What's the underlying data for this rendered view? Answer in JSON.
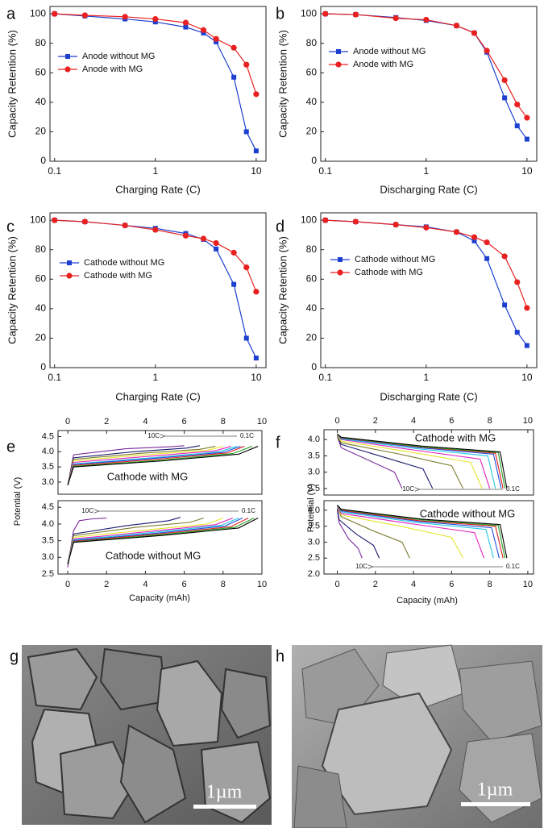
{
  "chart_data": [
    {
      "type": "line",
      "label": "a",
      "xscale": "log",
      "xlim": [
        0.09,
        12.5
      ],
      "xticks": [
        0.1,
        1,
        10
      ],
      "ylim": [
        0,
        105
      ],
      "yticks": [
        0,
        20,
        40,
        60,
        80,
        100
      ],
      "xlabel": "Charging Rate (C)",
      "ylabel": "Capacity Retention (%)",
      "legend": "center-left",
      "x": [
        0.1,
        0.2,
        0.5,
        1,
        2,
        3,
        4,
        6,
        8,
        10
      ],
      "series": [
        {
          "name": "Anode without MG",
          "color": "#1c3fd0",
          "marker": "square",
          "values": [
            100,
            98.5,
            96.5,
            94.5,
            91,
            87,
            81,
            57,
            20,
            7
          ]
        },
        {
          "name": "Anode with MG",
          "color": "#e82020",
          "marker": "circle",
          "values": [
            100,
            99,
            98,
            96.5,
            94,
            89,
            83,
            77,
            65.5,
            45.5
          ]
        }
      ]
    },
    {
      "type": "line",
      "label": "b",
      "xscale": "log",
      "xlim": [
        0.09,
        12.5
      ],
      "xticks": [
        0.1,
        1,
        10
      ],
      "ylim": [
        0,
        105
      ],
      "yticks": [
        0,
        20,
        40,
        60,
        80,
        100
      ],
      "xlabel": "Discharging Rate (C)",
      "ylabel": "Capacity Retention (%)",
      "legend": "center-left",
      "x": [
        0.1,
        0.2,
        0.5,
        1,
        2,
        3,
        4,
        6,
        8,
        10
      ],
      "series": [
        {
          "name": "Anode without MG",
          "color": "#1c3fd0",
          "marker": "square",
          "values": [
            100,
            99.5,
            97.5,
            95.5,
            92,
            87,
            74,
            43,
            24,
            15
          ]
        },
        {
          "name": "Anode with MG",
          "color": "#e82020",
          "marker": "circle",
          "values": [
            100,
            99.5,
            97,
            96,
            92,
            87,
            75,
            55,
            38.5,
            29.5
          ]
        }
      ]
    },
    {
      "type": "line",
      "label": "c",
      "xscale": "log",
      "xlim": [
        0.09,
        12.5
      ],
      "xticks": [
        0.1,
        1,
        10
      ],
      "ylim": [
        0,
        105
      ],
      "yticks": [
        0,
        20,
        40,
        60,
        80,
        100
      ],
      "xlabel": "Charging Rate (C)",
      "ylabel": "Capacity Retention (%)",
      "legend": "center-left",
      "x": [
        0.1,
        0.2,
        0.5,
        1,
        2,
        3,
        4,
        6,
        8,
        10
      ],
      "series": [
        {
          "name": "Cathode without MG",
          "color": "#1c3fd0",
          "marker": "square",
          "values": [
            100,
            99,
            96.5,
            94.5,
            91,
            87,
            80.5,
            56.5,
            20,
            6.5
          ]
        },
        {
          "name": "Cathode with MG",
          "color": "#e82020",
          "marker": "circle",
          "values": [
            100,
            99,
            96.5,
            93.5,
            89.5,
            87.5,
            84.5,
            78,
            68,
            51.5
          ]
        }
      ]
    },
    {
      "type": "line",
      "label": "d",
      "xscale": "log",
      "xlim": [
        0.09,
        12.5
      ],
      "xticks": [
        0.1,
        1,
        10
      ],
      "ylim": [
        0,
        105
      ],
      "yticks": [
        0,
        20,
        40,
        60,
        80,
        100
      ],
      "xlabel": "Discharging Rate (C)",
      "ylabel": "Capacity Retention (%)",
      "legend": "center-left",
      "x": [
        0.1,
        0.2,
        0.5,
        1,
        2,
        3,
        4,
        6,
        8,
        10
      ],
      "series": [
        {
          "name": "Cathode without MG",
          "color": "#1c3fd0",
          "marker": "square",
          "values": [
            100,
            99,
            97,
            95.5,
            92,
            86,
            74,
            42.5,
            24,
            15
          ]
        },
        {
          "name": "Cathode with MG",
          "color": "#e82020",
          "marker": "circle",
          "values": [
            100,
            99,
            97,
            95,
            92,
            88.5,
            85,
            75.5,
            58,
            40.5
          ]
        }
      ]
    },
    {
      "type": "line",
      "label": "e",
      "xaxis": "top",
      "xlim": [
        -0.5,
        10
      ],
      "xticks": [
        0,
        2,
        4,
        6,
        8,
        10
      ],
      "ylim": [
        2.6,
        4.7
      ],
      "yticks": [
        {
          "value": 3,
          "label": "3.0"
        },
        3.5,
        {
          "value": 4,
          "label": "4.0"
        },
        4.5
      ],
      "ylabel": "Potential (V)",
      "annotations": [
        "Cathode with MG",
        "10C",
        "0.1C"
      ],
      "series": [
        {
          "color": "#7b2a9c",
          "x": [
            0,
            0.3,
            3.0,
            5.4,
            6.0
          ],
          "values": [
            2.9,
            3.9,
            4.1,
            4.17,
            4.2
          ]
        },
        {
          "color": "#1a1a6e",
          "x": [
            0,
            0.3,
            3.4,
            6.1,
            6.8
          ],
          "values": [
            2.9,
            3.8,
            4.0,
            4.12,
            4.2
          ]
        },
        {
          "color": "#7a7a2a",
          "x": [
            0,
            0.3,
            3.8,
            6.8,
            7.6
          ],
          "values": [
            2.9,
            3.75,
            3.95,
            4.08,
            4.18
          ]
        },
        {
          "color": "#e5e52a",
          "x": [
            0,
            0.3,
            4.0,
            7.2,
            8.0
          ],
          "values": [
            2.9,
            3.7,
            3.9,
            4.05,
            4.18
          ]
        },
        {
          "color": "#e020c0",
          "x": [
            0,
            0.3,
            4.2,
            7.6,
            8.4
          ],
          "values": [
            2.9,
            3.65,
            3.85,
            4.03,
            4.18
          ]
        },
        {
          "color": "#20c8e0",
          "x": [
            0,
            0.3,
            4.35,
            7.8,
            8.7
          ],
          "values": [
            2.9,
            3.6,
            3.8,
            4.0,
            4.18
          ]
        },
        {
          "color": "#2050e0",
          "x": [
            0,
            0.3,
            4.45,
            8.0,
            8.9
          ],
          "values": [
            2.9,
            3.58,
            3.78,
            3.98,
            4.18
          ]
        },
        {
          "color": "#e02020",
          "x": [
            0,
            0.3,
            4.55,
            8.2,
            9.1
          ],
          "values": [
            2.9,
            3.55,
            3.75,
            3.96,
            4.18
          ]
        },
        {
          "color": "#20a020",
          "x": [
            0,
            0.3,
            4.75,
            8.5,
            9.5
          ],
          "values": [
            2.9,
            3.52,
            3.72,
            3.94,
            4.18
          ]
        },
        {
          "color": "#000000",
          "x": [
            0,
            0.3,
            4.9,
            8.8,
            9.8
          ],
          "values": [
            2.9,
            3.5,
            3.7,
            3.92,
            4.18
          ]
        }
      ]
    },
    {
      "type": "line",
      "xaxis": "bottom",
      "xlim": [
        -0.5,
        10
      ],
      "xticks": [
        0,
        2,
        4,
        6,
        8,
        10
      ],
      "ylim": [
        2.5,
        4.7
      ],
      "yticks": [
        2.5,
        {
          "value": 3,
          "label": "3.0"
        },
        3.5,
        {
          "value": 4,
          "label": "4.0"
        },
        4.5
      ],
      "xlabel": "Capacity (mAh)",
      "annotations": [
        "Cathode without MG",
        "10C",
        "0.1C"
      ],
      "series": [
        {
          "color": "#7b2a9c",
          "x": [
            0,
            0.3,
            0.6,
            1.2,
            2.0
          ],
          "values": [
            2.7,
            3.8,
            4.1,
            4.15,
            4.18
          ]
        },
        {
          "color": "#1a1a6e",
          "x": [
            0,
            0.3,
            3.0,
            5.2,
            5.8
          ],
          "values": [
            2.8,
            3.7,
            3.95,
            4.1,
            4.2
          ]
        },
        {
          "color": "#7a7a2a",
          "x": [
            0,
            0.3,
            3.5,
            6.3,
            7.0
          ],
          "values": [
            2.8,
            3.65,
            3.9,
            4.05,
            4.18
          ]
        },
        {
          "color": "#e5e52a",
          "x": [
            0,
            0.3,
            4.0,
            7.2,
            8.0
          ],
          "values": [
            2.8,
            3.6,
            3.82,
            4.0,
            4.18
          ]
        },
        {
          "color": "#e020c0",
          "x": [
            0,
            0.3,
            4.25,
            7.6,
            8.5
          ],
          "values": [
            2.8,
            3.55,
            3.78,
            3.98,
            4.18
          ]
        },
        {
          "color": "#20c8e0",
          "x": [
            0,
            0.3,
            4.4,
            7.9,
            8.8
          ],
          "values": [
            2.8,
            3.52,
            3.75,
            3.96,
            4.18
          ]
        },
        {
          "color": "#2050e0",
          "x": [
            0,
            0.3,
            4.5,
            8.1,
            9.0
          ],
          "values": [
            2.8,
            3.5,
            3.72,
            3.94,
            4.18
          ]
        },
        {
          "color": "#e02020",
          "x": [
            0,
            0.3,
            4.65,
            8.4,
            9.3
          ],
          "values": [
            2.8,
            3.48,
            3.7,
            3.92,
            4.18
          ]
        },
        {
          "color": "#20a020",
          "x": [
            0,
            0.3,
            4.8,
            8.6,
            9.6
          ],
          "values": [
            2.8,
            3.46,
            3.68,
            3.9,
            4.18
          ]
        },
        {
          "color": "#000000",
          "x": [
            0,
            0.3,
            4.9,
            8.8,
            9.8
          ],
          "values": [
            2.8,
            3.45,
            3.66,
            3.88,
            4.18
          ]
        }
      ]
    },
    {
      "type": "line",
      "label": "f",
      "xaxis": "top",
      "xlim": [
        -0.7,
        10.3
      ],
      "xticks": [
        0,
        2,
        4,
        6,
        8,
        10
      ],
      "ylim": [
        2.3,
        4.3
      ],
      "yticks": [
        2.5,
        {
          "value": 3,
          "label": "3.0"
        },
        3.5,
        {
          "value": 4,
          "label": "4.0"
        }
      ],
      "ylabel": "Potential (V)",
      "annotations": [
        "Cathode with MG",
        "10C",
        "0.1C"
      ],
      "series": [
        {
          "color": "#7b2a9c",
          "x": [
            0,
            0.2,
            1.7,
            3.0,
            3.4
          ],
          "values": [
            4.1,
            3.75,
            3.35,
            3.0,
            2.5
          ]
        },
        {
          "color": "#1a1a6e",
          "x": [
            0,
            0.2,
            2.5,
            4.5,
            5.0
          ],
          "values": [
            4.12,
            3.85,
            3.45,
            3.1,
            2.5
          ]
        },
        {
          "color": "#7a7a2a",
          "x": [
            0,
            0.2,
            3.3,
            6.0,
            6.6
          ],
          "values": [
            4.13,
            3.9,
            3.55,
            3.2,
            2.5
          ]
        },
        {
          "color": "#e5e52a",
          "x": [
            0,
            0.2,
            3.8,
            7.0,
            7.6
          ],
          "values": [
            4.14,
            3.95,
            3.62,
            3.3,
            2.5
          ]
        },
        {
          "color": "#e020c0",
          "x": [
            0,
            0.2,
            4.0,
            7.5,
            8.0
          ],
          "values": [
            4.15,
            4.0,
            3.68,
            3.4,
            2.5
          ]
        },
        {
          "color": "#20c8e0",
          "x": [
            0,
            0.2,
            4.15,
            7.9,
            8.3
          ],
          "values": [
            4.15,
            4.02,
            3.72,
            3.5,
            2.5
          ]
        },
        {
          "color": "#2050e0",
          "x": [
            0,
            0.2,
            4.3,
            8.2,
            8.6
          ],
          "values": [
            4.16,
            4.04,
            3.75,
            3.55,
            2.5
          ]
        },
        {
          "color": "#e02020",
          "x": [
            0,
            0.2,
            4.35,
            8.3,
            8.7
          ],
          "values": [
            4.16,
            4.05,
            3.77,
            3.58,
            2.5
          ]
        },
        {
          "color": "#20a020",
          "x": [
            0,
            0.2,
            4.4,
            8.45,
            8.8
          ],
          "values": [
            4.17,
            4.06,
            3.78,
            3.6,
            2.5
          ]
        },
        {
          "color": "#000000",
          "x": [
            0,
            0.2,
            4.45,
            8.55,
            8.9
          ],
          "values": [
            4.17,
            4.07,
            3.8,
            3.62,
            2.5
          ]
        }
      ]
    },
    {
      "type": "line",
      "xaxis": "bottom",
      "xlim": [
        -0.7,
        10.3
      ],
      "xticks": [
        0,
        2,
        4,
        6,
        8,
        10
      ],
      "ylim": [
        2.0,
        4.3
      ],
      "yticks": [
        {
          "value": 2,
          "label": "2.0"
        },
        2.5,
        {
          "value": 3,
          "label": "3.0"
        },
        3.5,
        {
          "value": 4,
          "label": "4.0"
        }
      ],
      "xlabel": "Capacity (mAh)",
      "annotations": [
        "Cathode without MG",
        "10C",
        "0.1C"
      ],
      "series": [
        {
          "color": "#7b2a9c",
          "x": [
            0,
            0.1,
            0.6,
            1.1,
            1.3
          ],
          "values": [
            4.0,
            3.6,
            3.1,
            2.8,
            2.5
          ]
        },
        {
          "color": "#1a1a6e",
          "x": [
            0,
            0.1,
            1.0,
            1.9,
            2.2
          ],
          "values": [
            4.05,
            3.7,
            3.25,
            2.9,
            2.5
          ]
        },
        {
          "color": "#7a7a2a",
          "x": [
            0,
            0.2,
            1.9,
            3.4,
            3.8
          ],
          "values": [
            4.08,
            3.8,
            3.35,
            3.0,
            2.5
          ]
        },
        {
          "color": "#e5e52a",
          "x": [
            0,
            0.2,
            3.3,
            6.0,
            6.6
          ],
          "values": [
            4.1,
            3.85,
            3.5,
            3.15,
            2.5
          ]
        },
        {
          "color": "#e020c0",
          "x": [
            0,
            0.2,
            3.85,
            7.2,
            7.7
          ],
          "values": [
            4.12,
            3.9,
            3.58,
            3.3,
            2.5
          ]
        },
        {
          "color": "#20c8e0",
          "x": [
            0,
            0.2,
            4.1,
            7.8,
            8.2
          ],
          "values": [
            4.13,
            3.95,
            3.62,
            3.4,
            2.5
          ]
        },
        {
          "color": "#2050e0",
          "x": [
            0,
            0.2,
            4.25,
            8.1,
            8.5
          ],
          "values": [
            4.14,
            3.98,
            3.65,
            3.45,
            2.5
          ]
        },
        {
          "color": "#e02020",
          "x": [
            0,
            0.2,
            4.35,
            8.3,
            8.7
          ],
          "values": [
            4.15,
            4.0,
            3.67,
            3.5,
            2.5
          ]
        },
        {
          "color": "#20a020",
          "x": [
            0,
            0.2,
            4.4,
            8.45,
            8.8
          ],
          "values": [
            4.16,
            4.02,
            3.7,
            3.52,
            2.5
          ]
        },
        {
          "color": "#000000",
          "x": [
            0,
            0.2,
            4.45,
            8.55,
            8.9
          ],
          "values": [
            4.16,
            4.03,
            3.72,
            3.55,
            2.5
          ]
        }
      ]
    }
  ],
  "images": [
    {
      "label": "g",
      "scale_bar": "1µm"
    },
    {
      "label": "h",
      "scale_bar": "1µm"
    }
  ]
}
